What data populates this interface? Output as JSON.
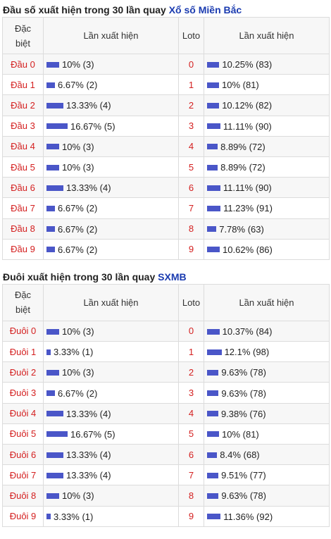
{
  "section1": {
    "title_prefix": "Đầu số xuất hiện trong 30 lần quay ",
    "title_highlight": "Xổ số Miền Bắc",
    "header": {
      "col1_line1": "Đặc",
      "col1_line2": "biệt",
      "col2": "Lần xuất hiện",
      "col3": "Loto",
      "col4": "Lần xuất hiện"
    },
    "rows": [
      {
        "label": "Đầu 0",
        "pct": 10,
        "value_text": "10% (3)",
        "loto": "0",
        "loto_pct": 10.25,
        "loto_text": "10.25% (83)"
      },
      {
        "label": "Đầu 1",
        "pct": 6.67,
        "value_text": "6.67% (2)",
        "loto": "1",
        "loto_pct": 10,
        "loto_text": "10% (81)"
      },
      {
        "label": "Đầu 2",
        "pct": 13.33,
        "value_text": "13.33% (4)",
        "loto": "2",
        "loto_pct": 10.12,
        "loto_text": "10.12% (82)"
      },
      {
        "label": "Đầu 3",
        "pct": 16.67,
        "value_text": "16.67% (5)",
        "loto": "3",
        "loto_pct": 11.11,
        "loto_text": "11.11% (90)"
      },
      {
        "label": "Đầu 4",
        "pct": 10,
        "value_text": "10% (3)",
        "loto": "4",
        "loto_pct": 8.89,
        "loto_text": "8.89% (72)"
      },
      {
        "label": "Đầu 5",
        "pct": 10,
        "value_text": "10% (3)",
        "loto": "5",
        "loto_pct": 8.89,
        "loto_text": "8.89% (72)"
      },
      {
        "label": "Đầu 6",
        "pct": 13.33,
        "value_text": "13.33% (4)",
        "loto": "6",
        "loto_pct": 11.11,
        "loto_text": "11.11% (90)"
      },
      {
        "label": "Đầu 7",
        "pct": 6.67,
        "value_text": "6.67% (2)",
        "loto": "7",
        "loto_pct": 11.23,
        "loto_text": "11.23% (91)"
      },
      {
        "label": "Đầu 8",
        "pct": 6.67,
        "value_text": "6.67% (2)",
        "loto": "8",
        "loto_pct": 7.78,
        "loto_text": "7.78% (63)"
      },
      {
        "label": "Đầu 9",
        "pct": 6.67,
        "value_text": "6.67% (2)",
        "loto": "9",
        "loto_pct": 10.62,
        "loto_text": "10.62% (86)"
      }
    ]
  },
  "section2": {
    "title_prefix": "Đuôi xuất hiện trong 30 lần quay ",
    "title_highlight": "SXMB",
    "header": {
      "col1_line1": "Đặc",
      "col1_line2": "biệt",
      "col2": "Lần xuất hiện",
      "col3": "Loto",
      "col4": "Lần xuất hiện"
    },
    "rows": [
      {
        "label": "Đuôi 0",
        "pct": 10,
        "value_text": "10% (3)",
        "loto": "0",
        "loto_pct": 10.37,
        "loto_text": "10.37% (84)"
      },
      {
        "label": "Đuôi 1",
        "pct": 3.33,
        "value_text": "3.33% (1)",
        "loto": "1",
        "loto_pct": 12.1,
        "loto_text": "12.1% (98)"
      },
      {
        "label": "Đuôi 2",
        "pct": 10,
        "value_text": "10% (3)",
        "loto": "2",
        "loto_pct": 9.63,
        "loto_text": "9.63% (78)"
      },
      {
        "label": "Đuôi 3",
        "pct": 6.67,
        "value_text": "6.67% (2)",
        "loto": "3",
        "loto_pct": 9.63,
        "loto_text": "9.63% (78)"
      },
      {
        "label": "Đuôi 4",
        "pct": 13.33,
        "value_text": "13.33% (4)",
        "loto": "4",
        "loto_pct": 9.38,
        "loto_text": "9.38% (76)"
      },
      {
        "label": "Đuôi 5",
        "pct": 16.67,
        "value_text": "16.67% (5)",
        "loto": "5",
        "loto_pct": 10,
        "loto_text": "10% (81)"
      },
      {
        "label": "Đuôi 6",
        "pct": 13.33,
        "value_text": "13.33% (4)",
        "loto": "6",
        "loto_pct": 8.4,
        "loto_text": "8.4% (68)"
      },
      {
        "label": "Đuôi 7",
        "pct": 13.33,
        "value_text": "13.33% (4)",
        "loto": "7",
        "loto_pct": 9.51,
        "loto_text": "9.51% (77)"
      },
      {
        "label": "Đuôi 8",
        "pct": 10,
        "value_text": "10% (3)",
        "loto": "8",
        "loto_pct": 9.63,
        "loto_text": "9.63% (78)"
      },
      {
        "label": "Đuôi 9",
        "pct": 3.33,
        "value_text": "3.33% (1)",
        "loto": "9",
        "loto_pct": 11.36,
        "loto_text": "11.36% (92)"
      }
    ]
  },
  "colors": {
    "bar": "#4a56c8",
    "label_red": "#d42020",
    "title_blue": "#1a3bb0"
  }
}
